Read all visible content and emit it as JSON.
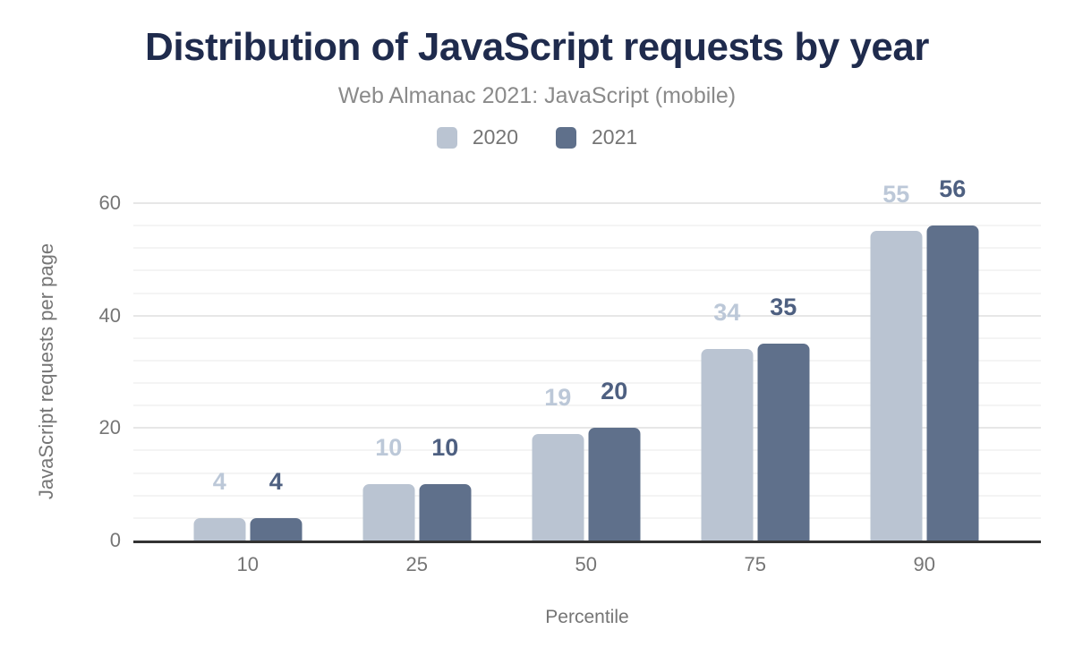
{
  "header": {
    "title": "Distribution of JavaScript requests by year",
    "subtitle": "Web Almanac 2021: JavaScript (mobile)"
  },
  "colors": {
    "title_text": "#1f2b4d",
    "muted_text": "#757575",
    "subtitle_text": "#8a8a8a",
    "axis_line": "#333333",
    "gridline_minor": "#f4f4f4",
    "gridline_major": "#e7e7e7",
    "series_2020": "#bac4d2",
    "series_2021": "#5f708b",
    "label_2020": "#bcc8d8",
    "label_2021": "#4e6081"
  },
  "chart_data": {
    "type": "bar",
    "title": "Distribution of JavaScript requests by year",
    "subtitle": "Web Almanac 2021: JavaScript (mobile)",
    "categories": [
      "10",
      "25",
      "50",
      "75",
      "90"
    ],
    "series": [
      {
        "name": "2020",
        "color": "#bac4d2",
        "label_color": "#bcc8d8",
        "values": [
          4,
          10,
          19,
          34,
          55
        ]
      },
      {
        "name": "2021",
        "color": "#5f708b",
        "label_color": "#4e6081",
        "values": [
          4,
          10,
          20,
          35,
          56
        ]
      }
    ],
    "xlabel": "Percentile",
    "ylabel": "JavaScript requests per page",
    "ylim": [
      0,
      60
    ],
    "y_major_step": 20,
    "y_minor_step": 4,
    "grid": true,
    "bar_value_labels": true,
    "legend_position": "top"
  }
}
